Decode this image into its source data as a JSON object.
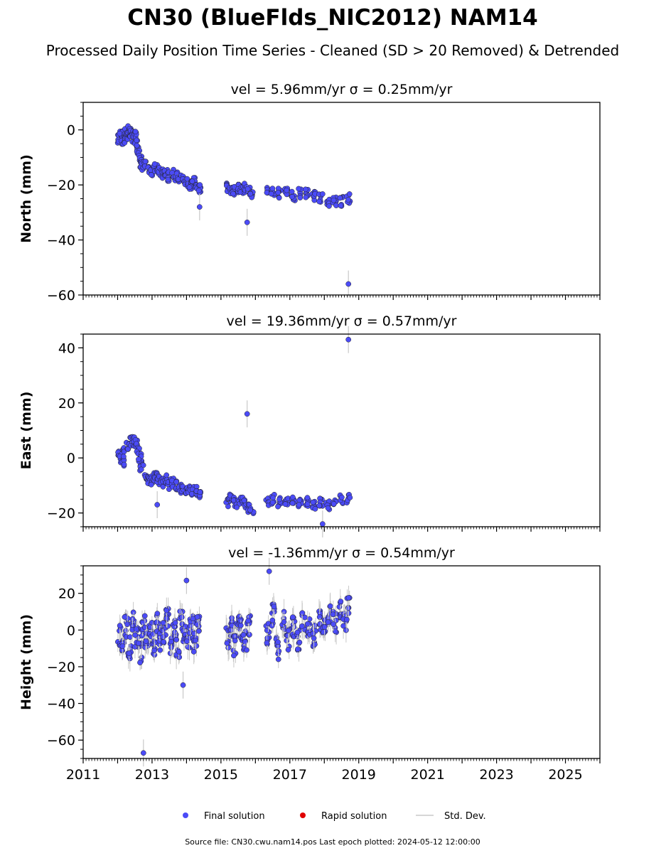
{
  "figure": {
    "title": "CN30 (BlueFlds_NIC2012) NAM14",
    "subtitle": "Processed Daily Position Time Series - Cleaned (SD > 20 Removed) & Detrended",
    "footer": "Source file: CN30.cwu.nam14.pos  Last epoch plotted: 2024-05-12 12:00:00",
    "colors": {
      "final": "#4b4bf7",
      "rapid": "#e00000",
      "stddev": "#c8c8c8"
    }
  },
  "legend": {
    "final_label": "Final solution",
    "rapid_label": "Rapid solution",
    "std_label": "Std. Dev."
  },
  "chart_data": [
    {
      "type": "scatter",
      "title": "vel = 5.96mm/yr   σ = 0.25mm/yr",
      "ylabel": "North (mm)",
      "xlim": [
        2011,
        2026
      ],
      "ylim": [
        -60,
        10
      ],
      "yticks": [
        0,
        -20,
        -40,
        -60
      ],
      "ytick_labels": [
        "0",
        "−20",
        "−40",
        "−60"
      ],
      "xtick_labels_visible": false,
      "series": [
        {
          "name": "Final solution",
          "x": [
            2012.05,
            2012.1,
            2012.15,
            2012.2,
            2012.25,
            2012.3,
            2012.35,
            2012.4,
            2012.45,
            2012.5,
            2012.55,
            2012.6,
            2012.65,
            2012.7,
            2012.75,
            2012.8,
            2012.9,
            2013.0,
            2013.1,
            2013.2,
            2013.3,
            2013.4,
            2013.5,
            2013.6,
            2013.7,
            2013.8,
            2013.9,
            2014.0,
            2014.1,
            2014.2,
            2014.3,
            2014.4,
            2015.2,
            2015.3,
            2015.4,
            2015.5,
            2015.6,
            2015.7,
            2015.8,
            2015.9,
            2016.35,
            2016.5,
            2016.7,
            2016.9,
            2017.1,
            2017.3,
            2017.5,
            2017.7,
            2017.9,
            2018.1,
            2018.3,
            2018.5,
            2018.7
          ],
          "y": [
            -3,
            -2,
            -4,
            -1,
            -3,
            -2,
            0,
            -1,
            -3,
            -2,
            -5,
            -7,
            -10,
            -12,
            -13,
            -13,
            -14,
            -15,
            -14,
            -15,
            -16,
            -15,
            -17,
            -16,
            -17,
            -18,
            -18,
            -19,
            -20,
            -19,
            -20,
            -21,
            -21,
            -22,
            -22,
            -21,
            -22,
            -21,
            -22,
            -23,
            -22,
            -22,
            -23,
            -23,
            -24,
            -23,
            -23,
            -24,
            -25,
            -26,
            -26,
            -26,
            -25
          ]
        },
        {
          "name": "Outliers",
          "x": [
            2014.38,
            2015.76,
            2018.7
          ],
          "y": [
            -28,
            -33.6,
            -56
          ]
        }
      ]
    },
    {
      "type": "scatter",
      "title": "vel = 19.36mm/yr   σ = 0.57mm/yr",
      "ylabel": "East (mm)",
      "xlim": [
        2011,
        2026
      ],
      "ylim": [
        -25,
        45
      ],
      "yticks": [
        40,
        20,
        0,
        -20
      ],
      "ytick_labels": [
        "40",
        "20",
        "0",
        "−20"
      ],
      "xtick_labels_visible": false,
      "series": [
        {
          "name": "Final solution",
          "x": [
            2012.05,
            2012.1,
            2012.15,
            2012.2,
            2012.3,
            2012.4,
            2012.5,
            2012.55,
            2012.6,
            2012.65,
            2012.7,
            2012.8,
            2012.9,
            2013.0,
            2013.1,
            2013.2,
            2013.3,
            2013.4,
            2013.5,
            2013.6,
            2013.7,
            2013.8,
            2013.9,
            2014.0,
            2014.1,
            2014.2,
            2014.3,
            2014.4,
            2015.2,
            2015.3,
            2015.4,
            2015.5,
            2015.6,
            2015.7,
            2015.8,
            2015.9,
            2016.35,
            2016.5,
            2016.7,
            2016.9,
            2017.1,
            2017.3,
            2017.5,
            2017.7,
            2017.9,
            2018.1,
            2018.3,
            2018.5,
            2018.7
          ],
          "y": [
            1,
            0,
            -2,
            2,
            4,
            6,
            6,
            5,
            3,
            0,
            -3,
            -6,
            -8,
            -8,
            -7,
            -8,
            -9,
            -8,
            -10,
            -9,
            -10,
            -11,
            -11,
            -12,
            -11,
            -12,
            -12,
            -13,
            -16,
            -15,
            -16,
            -17,
            -16,
            -17,
            -18,
            -19,
            -16,
            -15,
            -16,
            -16,
            -15,
            -16,
            -16,
            -17,
            -16,
            -17,
            -16,
            -15,
            -15
          ]
        },
        {
          "name": "Outliers",
          "x": [
            2015.76,
            2018.7,
            2013.15,
            2017.95
          ],
          "y": [
            16,
            43,
            -17,
            -24
          ]
        }
      ]
    },
    {
      "type": "scatter",
      "title": "vel = -1.36mm/yr   σ = 0.54mm/yr",
      "ylabel": "Height (mm)",
      "xlim": [
        2011,
        2026
      ],
      "ylim": [
        -70,
        35
      ],
      "yticks": [
        20,
        0,
        -20,
        -40,
        -60
      ],
      "ytick_labels": [
        "20",
        "0",
        "−20",
        "−40",
        "−60"
      ],
      "xticks": [
        2011,
        2013,
        2015,
        2017,
        2019,
        2021,
        2023,
        2025
      ],
      "xtick_labels": [
        "2011",
        "2013",
        "2015",
        "2017",
        "2019",
        "2021",
        "2023",
        "2025"
      ],
      "xtick_labels_visible": true,
      "series": [
        {
          "name": "Final solution",
          "x": [
            2012.05,
            2012.15,
            2012.25,
            2012.35,
            2012.45,
            2012.55,
            2012.65,
            2012.75,
            2012.85,
            2012.95,
            2013.05,
            2013.15,
            2013.25,
            2013.35,
            2013.45,
            2013.55,
            2013.65,
            2013.75,
            2013.85,
            2013.95,
            2014.05,
            2014.15,
            2014.25,
            2014.35,
            2015.2,
            2015.3,
            2015.4,
            2015.5,
            2015.6,
            2015.7,
            2015.8,
            2016.35,
            2016.5,
            2016.65,
            2016.8,
            2016.95,
            2017.1,
            2017.25,
            2017.4,
            2017.55,
            2017.7,
            2017.85,
            2018.0,
            2018.15,
            2018.3,
            2018.45,
            2018.6,
            2018.7
          ],
          "y": [
            -3,
            -8,
            2,
            -10,
            5,
            -4,
            -12,
            3,
            -6,
            0,
            -8,
            4,
            -5,
            -2,
            8,
            -7,
            1,
            -10,
            6,
            -3,
            -5,
            2,
            -8,
            4,
            -4,
            2,
            -8,
            6,
            0,
            -6,
            3,
            -2,
            8,
            -10,
            4,
            -5,
            2,
            -6,
            5,
            0,
            -3,
            6,
            2,
            8,
            4,
            10,
            6,
            12
          ]
        },
        {
          "name": "Outliers",
          "x": [
            2012.75,
            2014.0,
            2016.4,
            2013.9
          ],
          "y": [
            -67,
            27,
            32,
            -30
          ]
        }
      ]
    }
  ]
}
